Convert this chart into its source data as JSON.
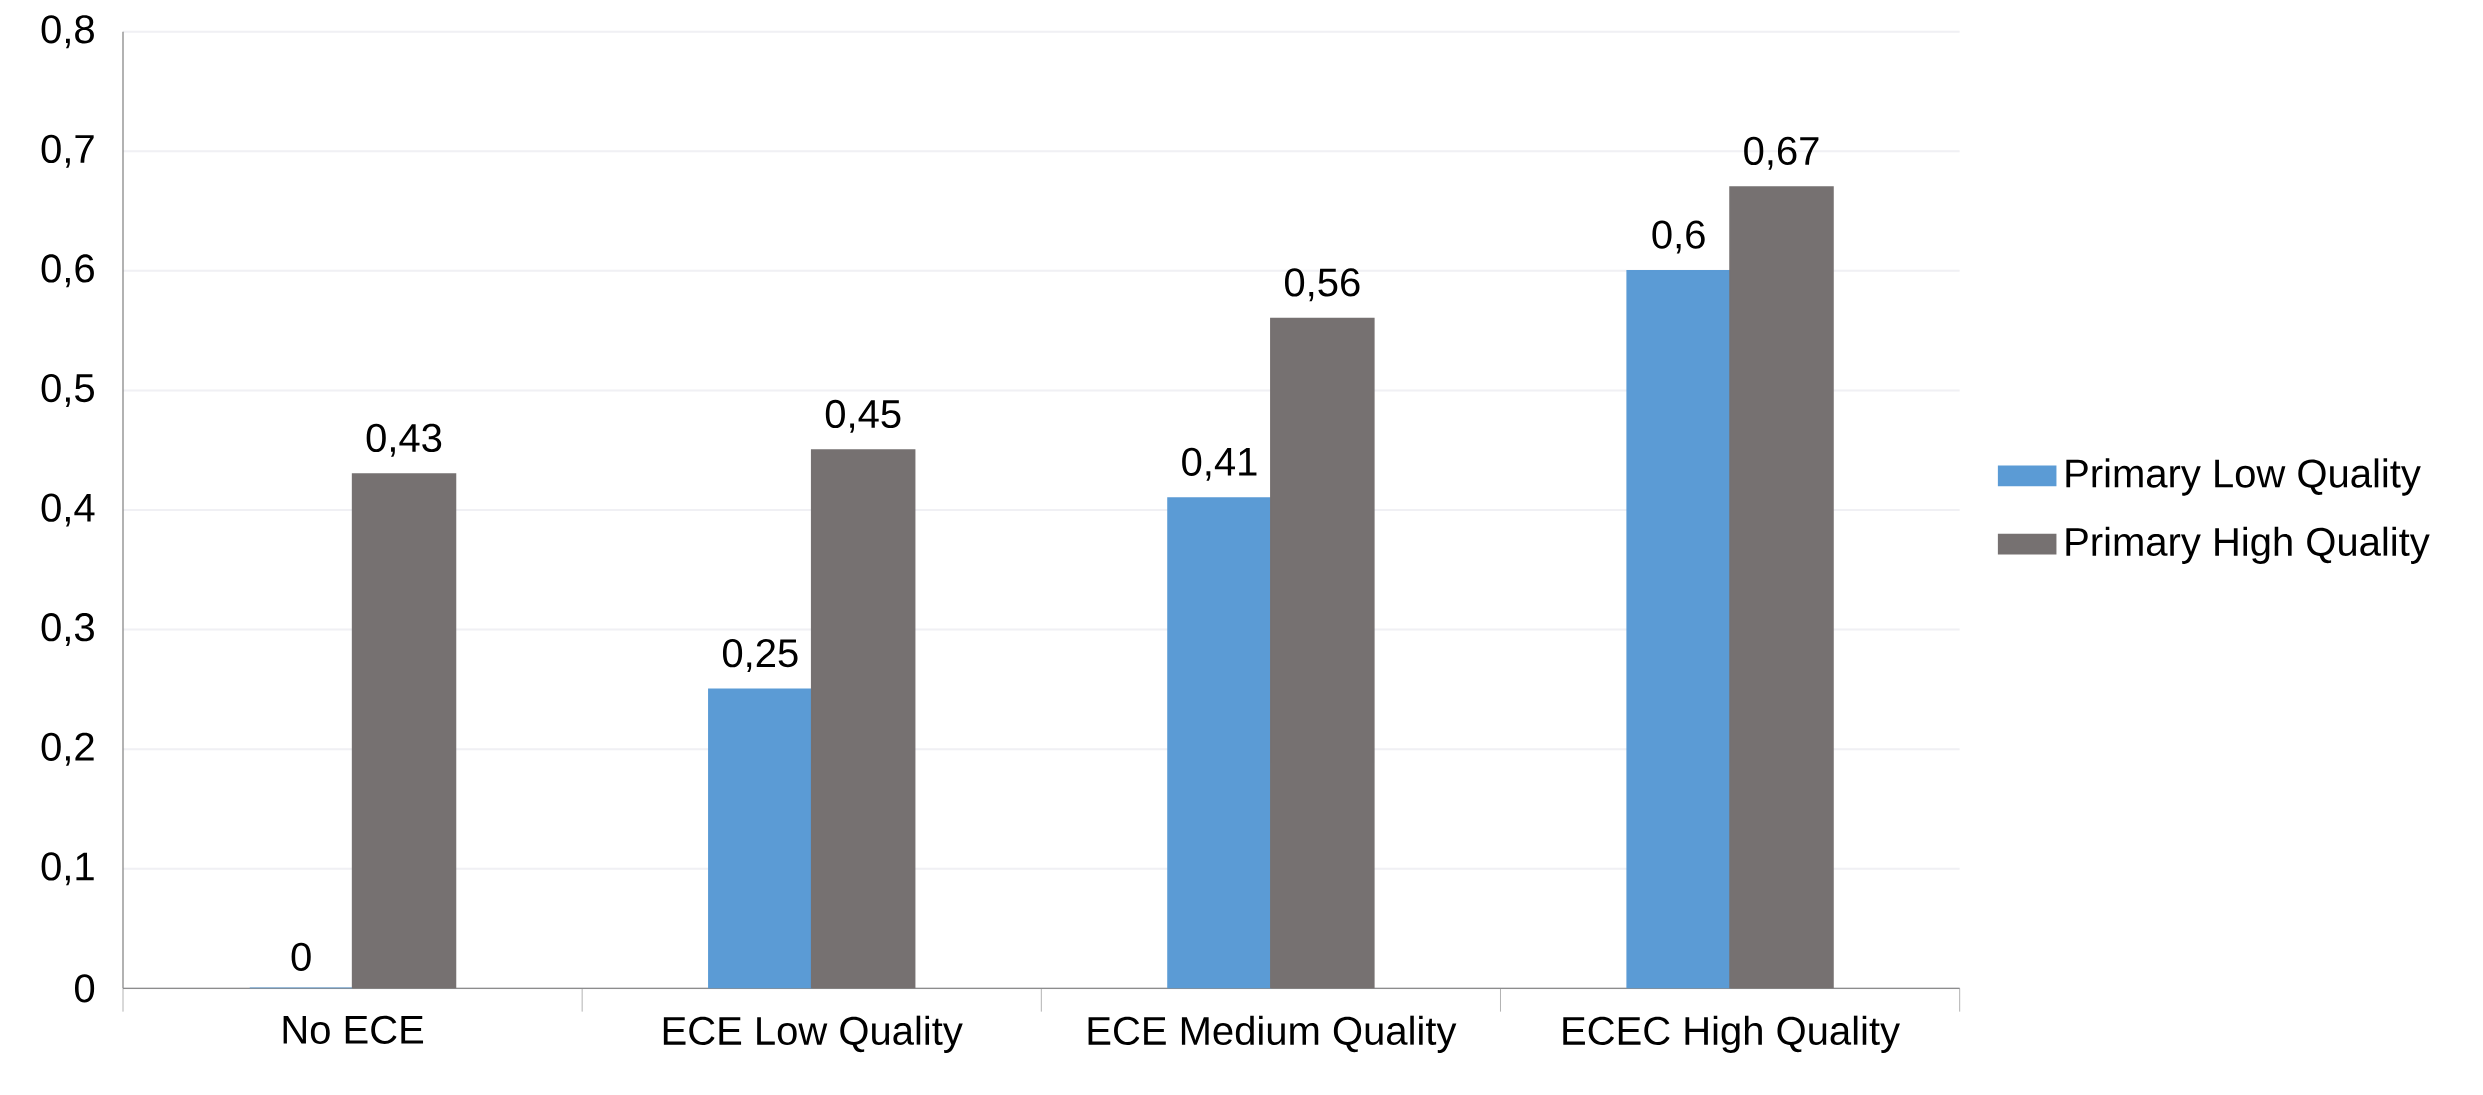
{
  "chart_data": {
    "type": "bar",
    "categories": [
      "No ECE",
      "ECE Low Quality",
      "ECE Medium Quality",
      "ECEC High Quality"
    ],
    "series": [
      {
        "name": "Primary Low Quality",
        "color": "#5b9bd5",
        "values": [
          0,
          0.25,
          0.41,
          0.6
        ],
        "value_labels": [
          "0",
          "0,25",
          "0,41",
          "0,6"
        ]
      },
      {
        "name": "Primary High Quality",
        "color": "#767171",
        "values": [
          0.43,
          0.45,
          0.56,
          0.67
        ],
        "value_labels": [
          "0,43",
          "0,45",
          "0,56",
          "0,67"
        ]
      }
    ],
    "ylim": [
      0,
      0.8
    ],
    "yticks": [
      {
        "value": 0,
        "label": "0"
      },
      {
        "value": 0.1,
        "label": "0,1"
      },
      {
        "value": 0.2,
        "label": "0,2"
      },
      {
        "value": 0.3,
        "label": "0,3"
      },
      {
        "value": 0.4,
        "label": "0,4"
      },
      {
        "value": 0.5,
        "label": "0,5"
      },
      {
        "value": 0.6,
        "label": "0,6"
      },
      {
        "value": 0.7,
        "label": "0,7"
      },
      {
        "value": 0.8,
        "label": "0,8"
      }
    ],
    "grid": "y",
    "legend": "right"
  }
}
